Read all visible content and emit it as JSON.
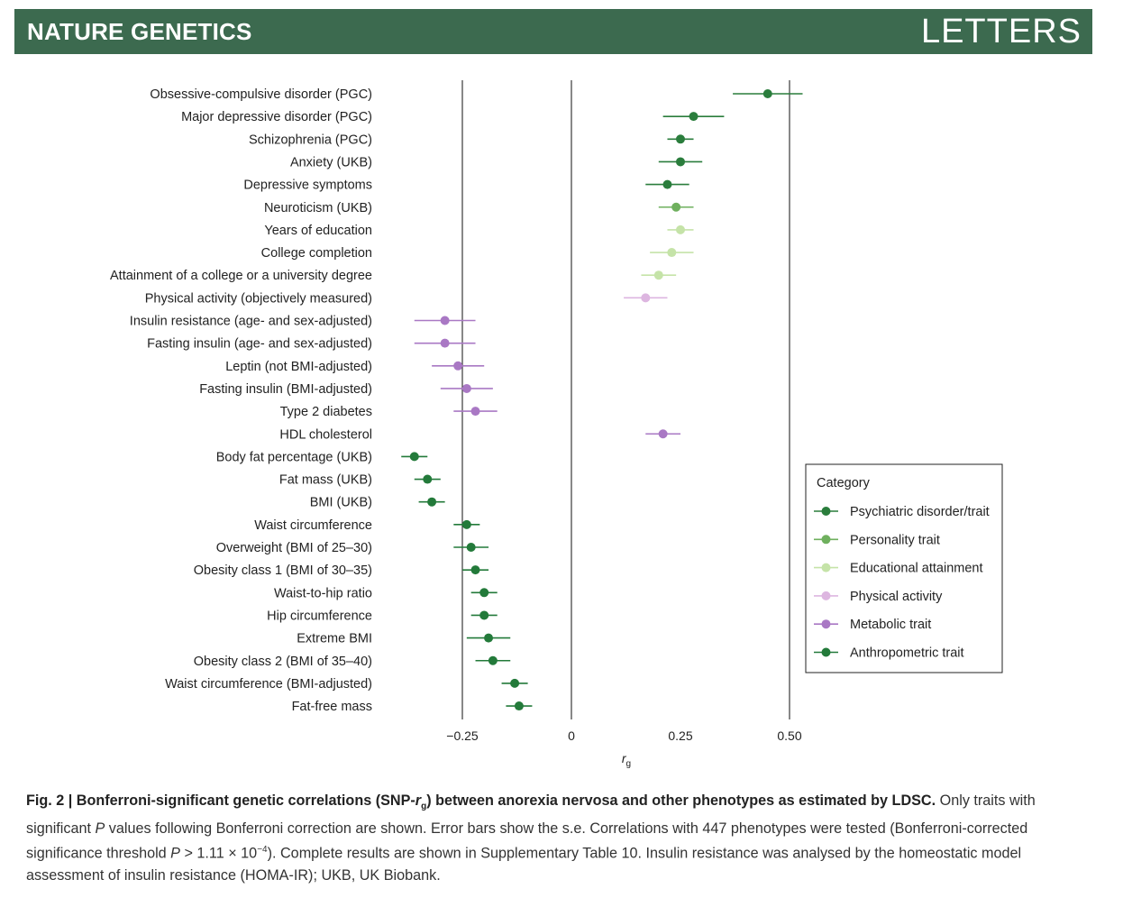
{
  "header": {
    "journal": "NATURE GENETICS",
    "section": "LETTERS"
  },
  "colors": {
    "banner": "#3c6a4f"
  },
  "chart_data": {
    "type": "scatter",
    "subtype": "forest plot with error bars",
    "xlabel": "r",
    "xlabel_subscript": "g",
    "xlim": [
      -0.39,
      0.6
    ],
    "xticks": [
      -0.25,
      0,
      0.25,
      0.5
    ],
    "xtick_labels": [
      "−0.25",
      "0",
      "0.25",
      "0.50"
    ],
    "reference_lines": [
      -0.25,
      0,
      0.5
    ],
    "grid": false,
    "legend": {
      "title": "Category",
      "placement": "lower-right",
      "entries": [
        {
          "key": "psychiatric",
          "label": "Psychiatric disorder/trait",
          "color": "#2a7d3c"
        },
        {
          "key": "personality",
          "label": "Personality trait",
          "color": "#6fb05e"
        },
        {
          "key": "educational",
          "label": "Educational attainment",
          "color": "#c5e3a8"
        },
        {
          "key": "physical",
          "label": "Physical activity",
          "color": "#ddb6e0"
        },
        {
          "key": "metabolic",
          "label": "Metabolic trait",
          "color": "#a978c4"
        },
        {
          "key": "anthropometric",
          "label": "Anthropometric trait",
          "color": "#237a3a"
        }
      ]
    },
    "points": [
      {
        "label": "Obsessive-compulsive disorder (PGC)",
        "rg": 0.45,
        "se": 0.08,
        "category": "psychiatric"
      },
      {
        "label": "Major depressive disorder (PGC)",
        "rg": 0.28,
        "se": 0.07,
        "category": "psychiatric"
      },
      {
        "label": "Schizophrenia (PGC)",
        "rg": 0.25,
        "se": 0.03,
        "category": "psychiatric"
      },
      {
        "label": "Anxiety (UKB)",
        "rg": 0.25,
        "se": 0.05,
        "category": "psychiatric"
      },
      {
        "label": "Depressive symptoms",
        "rg": 0.22,
        "se": 0.05,
        "category": "psychiatric"
      },
      {
        "label": "Neuroticism (UKB)",
        "rg": 0.24,
        "se": 0.04,
        "category": "personality"
      },
      {
        "label": "Years of education",
        "rg": 0.25,
        "se": 0.03,
        "category": "educational"
      },
      {
        "label": "College completion",
        "rg": 0.23,
        "se": 0.05,
        "category": "educational"
      },
      {
        "label": "Attainment of a college or a university degree",
        "rg": 0.2,
        "se": 0.04,
        "category": "educational"
      },
      {
        "label": "Physical activity (objectively measured)",
        "rg": 0.17,
        "se": 0.05,
        "category": "physical"
      },
      {
        "label": "Insulin resistance (age- and sex-adjusted)",
        "rg": -0.29,
        "se": 0.07,
        "category": "metabolic"
      },
      {
        "label": "Fasting insulin (age- and sex-adjusted)",
        "rg": -0.29,
        "se": 0.07,
        "category": "metabolic"
      },
      {
        "label": "Leptin (not BMI-adjusted)",
        "rg": -0.26,
        "se": 0.06,
        "category": "metabolic"
      },
      {
        "label": "Fasting insulin (BMI-adjusted)",
        "rg": -0.24,
        "se": 0.06,
        "category": "metabolic"
      },
      {
        "label": "Type 2 diabetes",
        "rg": -0.22,
        "se": 0.05,
        "category": "metabolic"
      },
      {
        "label": "HDL cholesterol",
        "rg": 0.21,
        "se": 0.04,
        "category": "metabolic"
      },
      {
        "label": "Body fat percentage (UKB)",
        "rg": -0.36,
        "se": 0.03,
        "category": "anthropometric"
      },
      {
        "label": "Fat mass (UKB)",
        "rg": -0.33,
        "se": 0.03,
        "category": "anthropometric"
      },
      {
        "label": "BMI (UKB)",
        "rg": -0.32,
        "se": 0.03,
        "category": "anthropometric"
      },
      {
        "label": "Waist circumference",
        "rg": -0.24,
        "se": 0.03,
        "category": "anthropometric"
      },
      {
        "label": "Overweight (BMI of 25–30)",
        "rg": -0.23,
        "se": 0.04,
        "category": "anthropometric"
      },
      {
        "label": "Obesity class 1 (BMI of 30–35)",
        "rg": -0.22,
        "se": 0.03,
        "category": "anthropometric"
      },
      {
        "label": "Waist-to-hip ratio",
        "rg": -0.2,
        "se": 0.03,
        "category": "anthropometric"
      },
      {
        "label": "Hip circumference",
        "rg": -0.2,
        "se": 0.03,
        "category": "anthropometric"
      },
      {
        "label": "Extreme BMI",
        "rg": -0.19,
        "se": 0.05,
        "category": "anthropometric"
      },
      {
        "label": "Obesity class 2 (BMI of 35–40)",
        "rg": -0.18,
        "se": 0.04,
        "category": "anthropometric"
      },
      {
        "label": "Waist circumference (BMI-adjusted)",
        "rg": -0.13,
        "se": 0.03,
        "category": "anthropometric"
      },
      {
        "label": "Fat-free mass",
        "rg": -0.12,
        "se": 0.03,
        "category": "anthropometric"
      }
    ]
  },
  "caption": {
    "fig_label": "Fig. 2 |",
    "title_part1": " Bonferroni-significant genetic correlations (SNP-",
    "title_r": "r",
    "title_sub": "g",
    "title_part2": ") between anorexia nervosa and other phenotypes as estimated by LDSC.",
    "text_part1": " Only traits with significant ",
    "text_p1": "P",
    "text_part2": " values following Bonferroni correction are shown. Error bars show the s.e. Correlations with 447 phenotypes were tested (Bonferroni-corrected significance threshold ",
    "text_p2": "P",
    "text_part3": " > 1.11 × 10",
    "text_exp": "−4",
    "text_part4": "). Complete results are shown in Supplementary Table 10. Insulin resistance was analysed by the homeostatic model assessment of insulin resistance (HOMA-IR); UKB, UK Biobank."
  }
}
